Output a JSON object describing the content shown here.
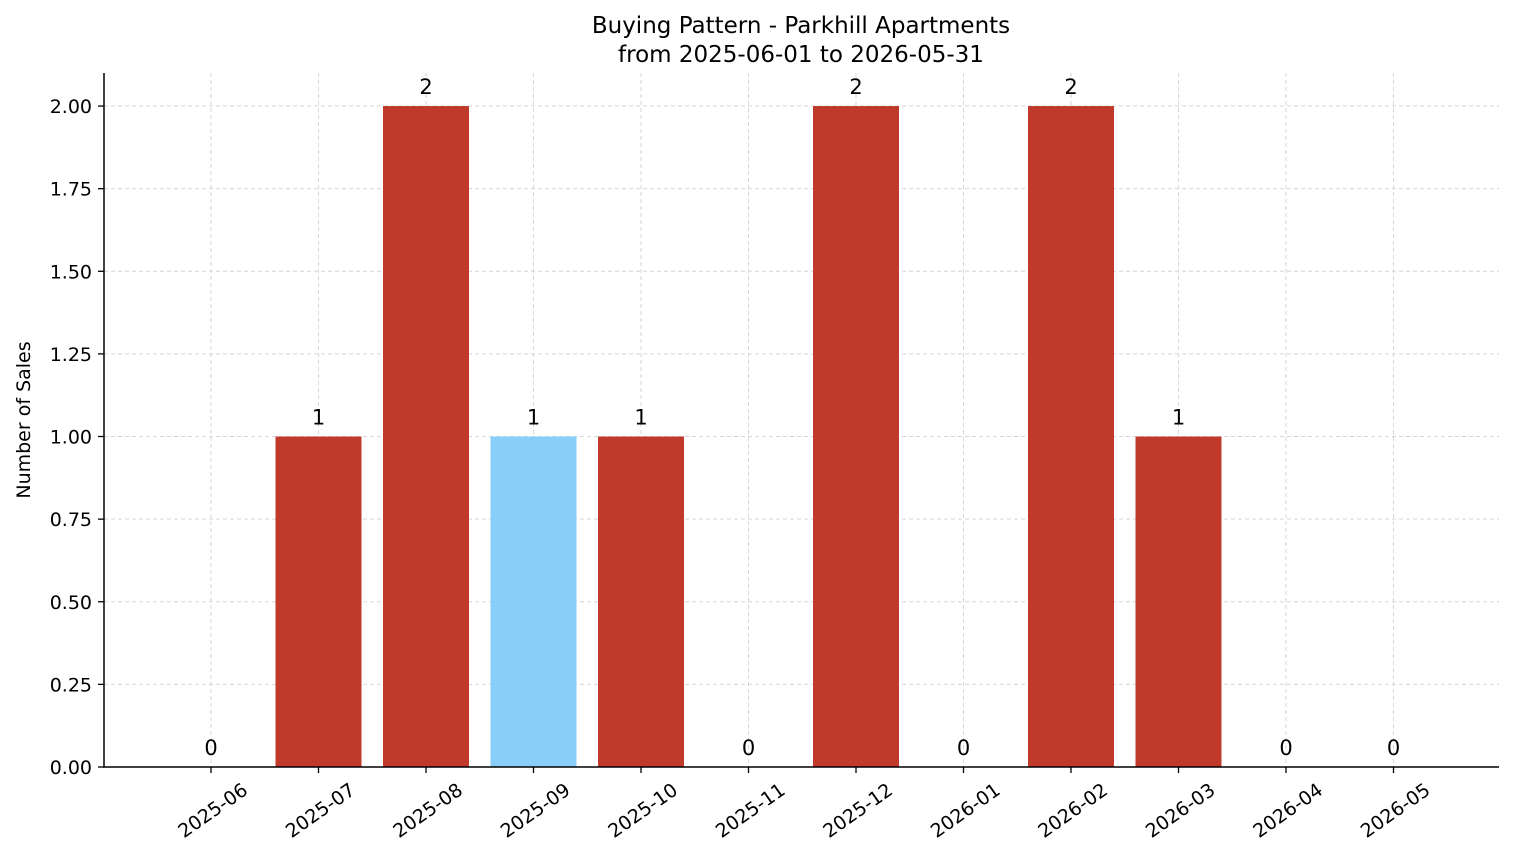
{
  "chart_data": {
    "type": "bar",
    "title": "Buying Pattern - Parkhill Apartments",
    "subtitle": "from 2025-06-01 to 2026-05-31",
    "xlabel": "",
    "ylabel": "Number of Sales",
    "categories": [
      "2025-06",
      "2025-07",
      "2025-08",
      "2025-09",
      "2025-10",
      "2025-11",
      "2025-12",
      "2026-01",
      "2026-02",
      "2026-03",
      "2026-04",
      "2026-05"
    ],
    "values": [
      0,
      1,
      2,
      1,
      1,
      0,
      2,
      0,
      2,
      1,
      0,
      0
    ],
    "bar_colors": [
      "#c0392b",
      "#c0392b",
      "#c0392b",
      "#87cefa",
      "#c0392b",
      "#c0392b",
      "#c0392b",
      "#c0392b",
      "#c0392b",
      "#c0392b",
      "#c0392b",
      "#c0392b"
    ],
    "ylim": [
      0,
      2.1
    ],
    "yticks": [
      0,
      0.25,
      0.5,
      0.75,
      1.0,
      1.25,
      1.5,
      1.75,
      2.0
    ],
    "ytick_labels": [
      "0.00",
      "0.25",
      "0.50",
      "0.75",
      "1.00",
      "1.25",
      "1.50",
      "1.75",
      "2.00"
    ],
    "grid": true,
    "data_labels": [
      "0",
      "1",
      "2",
      "1",
      "1",
      "0",
      "2",
      "0",
      "2",
      "1",
      "0",
      "0"
    ],
    "colors": {
      "primary": "#c0392b",
      "highlight": "#87cefa",
      "grid": "#d6d6d6"
    }
  }
}
